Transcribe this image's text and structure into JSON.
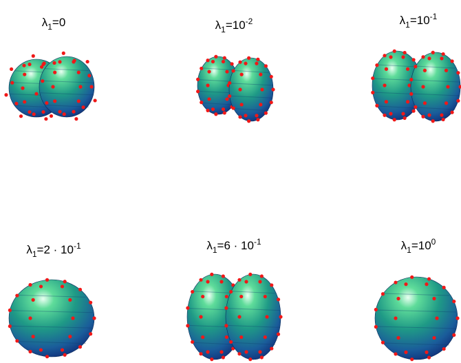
{
  "panels": [
    {
      "symbol": "λ",
      "subscript": "1",
      "text": "=0"
    },
    {
      "symbol": "λ",
      "subscript": "1",
      "text": "=10",
      "superscript": "-2"
    },
    {
      "symbol": "λ",
      "subscript": "1",
      "text": "=10",
      "superscript": "-1"
    },
    {
      "symbol": "λ",
      "subscript": "1",
      "text": "=2 · 10",
      "superscript": "-1"
    },
    {
      "symbol": "λ",
      "subscript": "1",
      "text": "=6 · 10",
      "superscript": "-1"
    },
    {
      "symbol": "λ",
      "subscript": "1",
      "text": "=10",
      "superscript": "0"
    }
  ]
}
